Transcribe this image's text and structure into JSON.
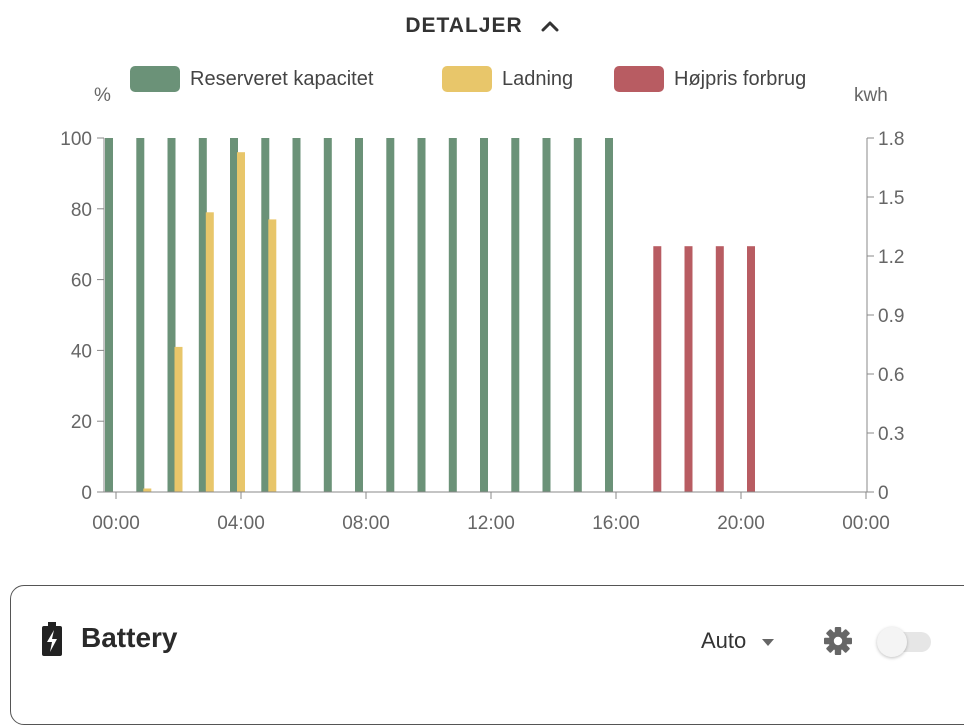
{
  "details": {
    "label": "DETALJER"
  },
  "chart_data": {
    "type": "bar",
    "left_unit": "%",
    "right_unit": "kwh",
    "legend_position": "top",
    "grid": false,
    "left_axis": {
      "range": [
        0,
        100
      ],
      "ticks": [
        "0",
        "20",
        "40",
        "60",
        "80",
        "100"
      ]
    },
    "right_axis": {
      "range": [
        0,
        1.8
      ],
      "ticks": [
        "0",
        "0.3",
        "0.6",
        "0.9",
        "1.2",
        "1.5",
        "1.8"
      ]
    },
    "x_axis": {
      "range_hours": [
        0,
        24
      ],
      "ticks": [
        "00:00",
        "04:00",
        "08:00",
        "12:00",
        "16:00",
        "20:00",
        "00:00"
      ]
    },
    "series": [
      {
        "name": "Reserveret kapacitet",
        "color": "#6b9278",
        "axis": "left",
        "points": [
          {
            "hour": 0,
            "value": 100
          },
          {
            "hour": 1,
            "value": 100
          },
          {
            "hour": 2,
            "value": 100
          },
          {
            "hour": 3,
            "value": 100
          },
          {
            "hour": 4,
            "value": 100
          },
          {
            "hour": 5,
            "value": 100
          },
          {
            "hour": 6,
            "value": 100
          },
          {
            "hour": 7,
            "value": 100
          },
          {
            "hour": 8,
            "value": 100
          },
          {
            "hour": 9,
            "value": 100
          },
          {
            "hour": 10,
            "value": 100
          },
          {
            "hour": 11,
            "value": 100
          },
          {
            "hour": 12,
            "value": 100
          },
          {
            "hour": 13,
            "value": 100
          },
          {
            "hour": 14,
            "value": 100
          },
          {
            "hour": 15,
            "value": 100
          },
          {
            "hour": 16,
            "value": 100
          }
        ]
      },
      {
        "name": "Ladning",
        "color": "#e8c66a",
        "axis": "left",
        "points": [
          {
            "hour": 1,
            "value": 1
          },
          {
            "hour": 2,
            "value": 41
          },
          {
            "hour": 3,
            "value": 79
          },
          {
            "hour": 4,
            "value": 96
          },
          {
            "hour": 5,
            "value": 77
          }
        ]
      },
      {
        "name": "Højpris forbrug",
        "color": "#b85c62",
        "axis": "right",
        "points": [
          {
            "hour": 17,
            "value": 1.25
          },
          {
            "hour": 18,
            "value": 1.25
          },
          {
            "hour": 19,
            "value": 1.25
          },
          {
            "hour": 20,
            "value": 1.25
          }
        ]
      }
    ]
  },
  "battery_card": {
    "title": "Battery",
    "mode": "Auto",
    "icon": "battery-charging-icon",
    "settings_icon": "gear-icon",
    "toggle_on": false
  }
}
